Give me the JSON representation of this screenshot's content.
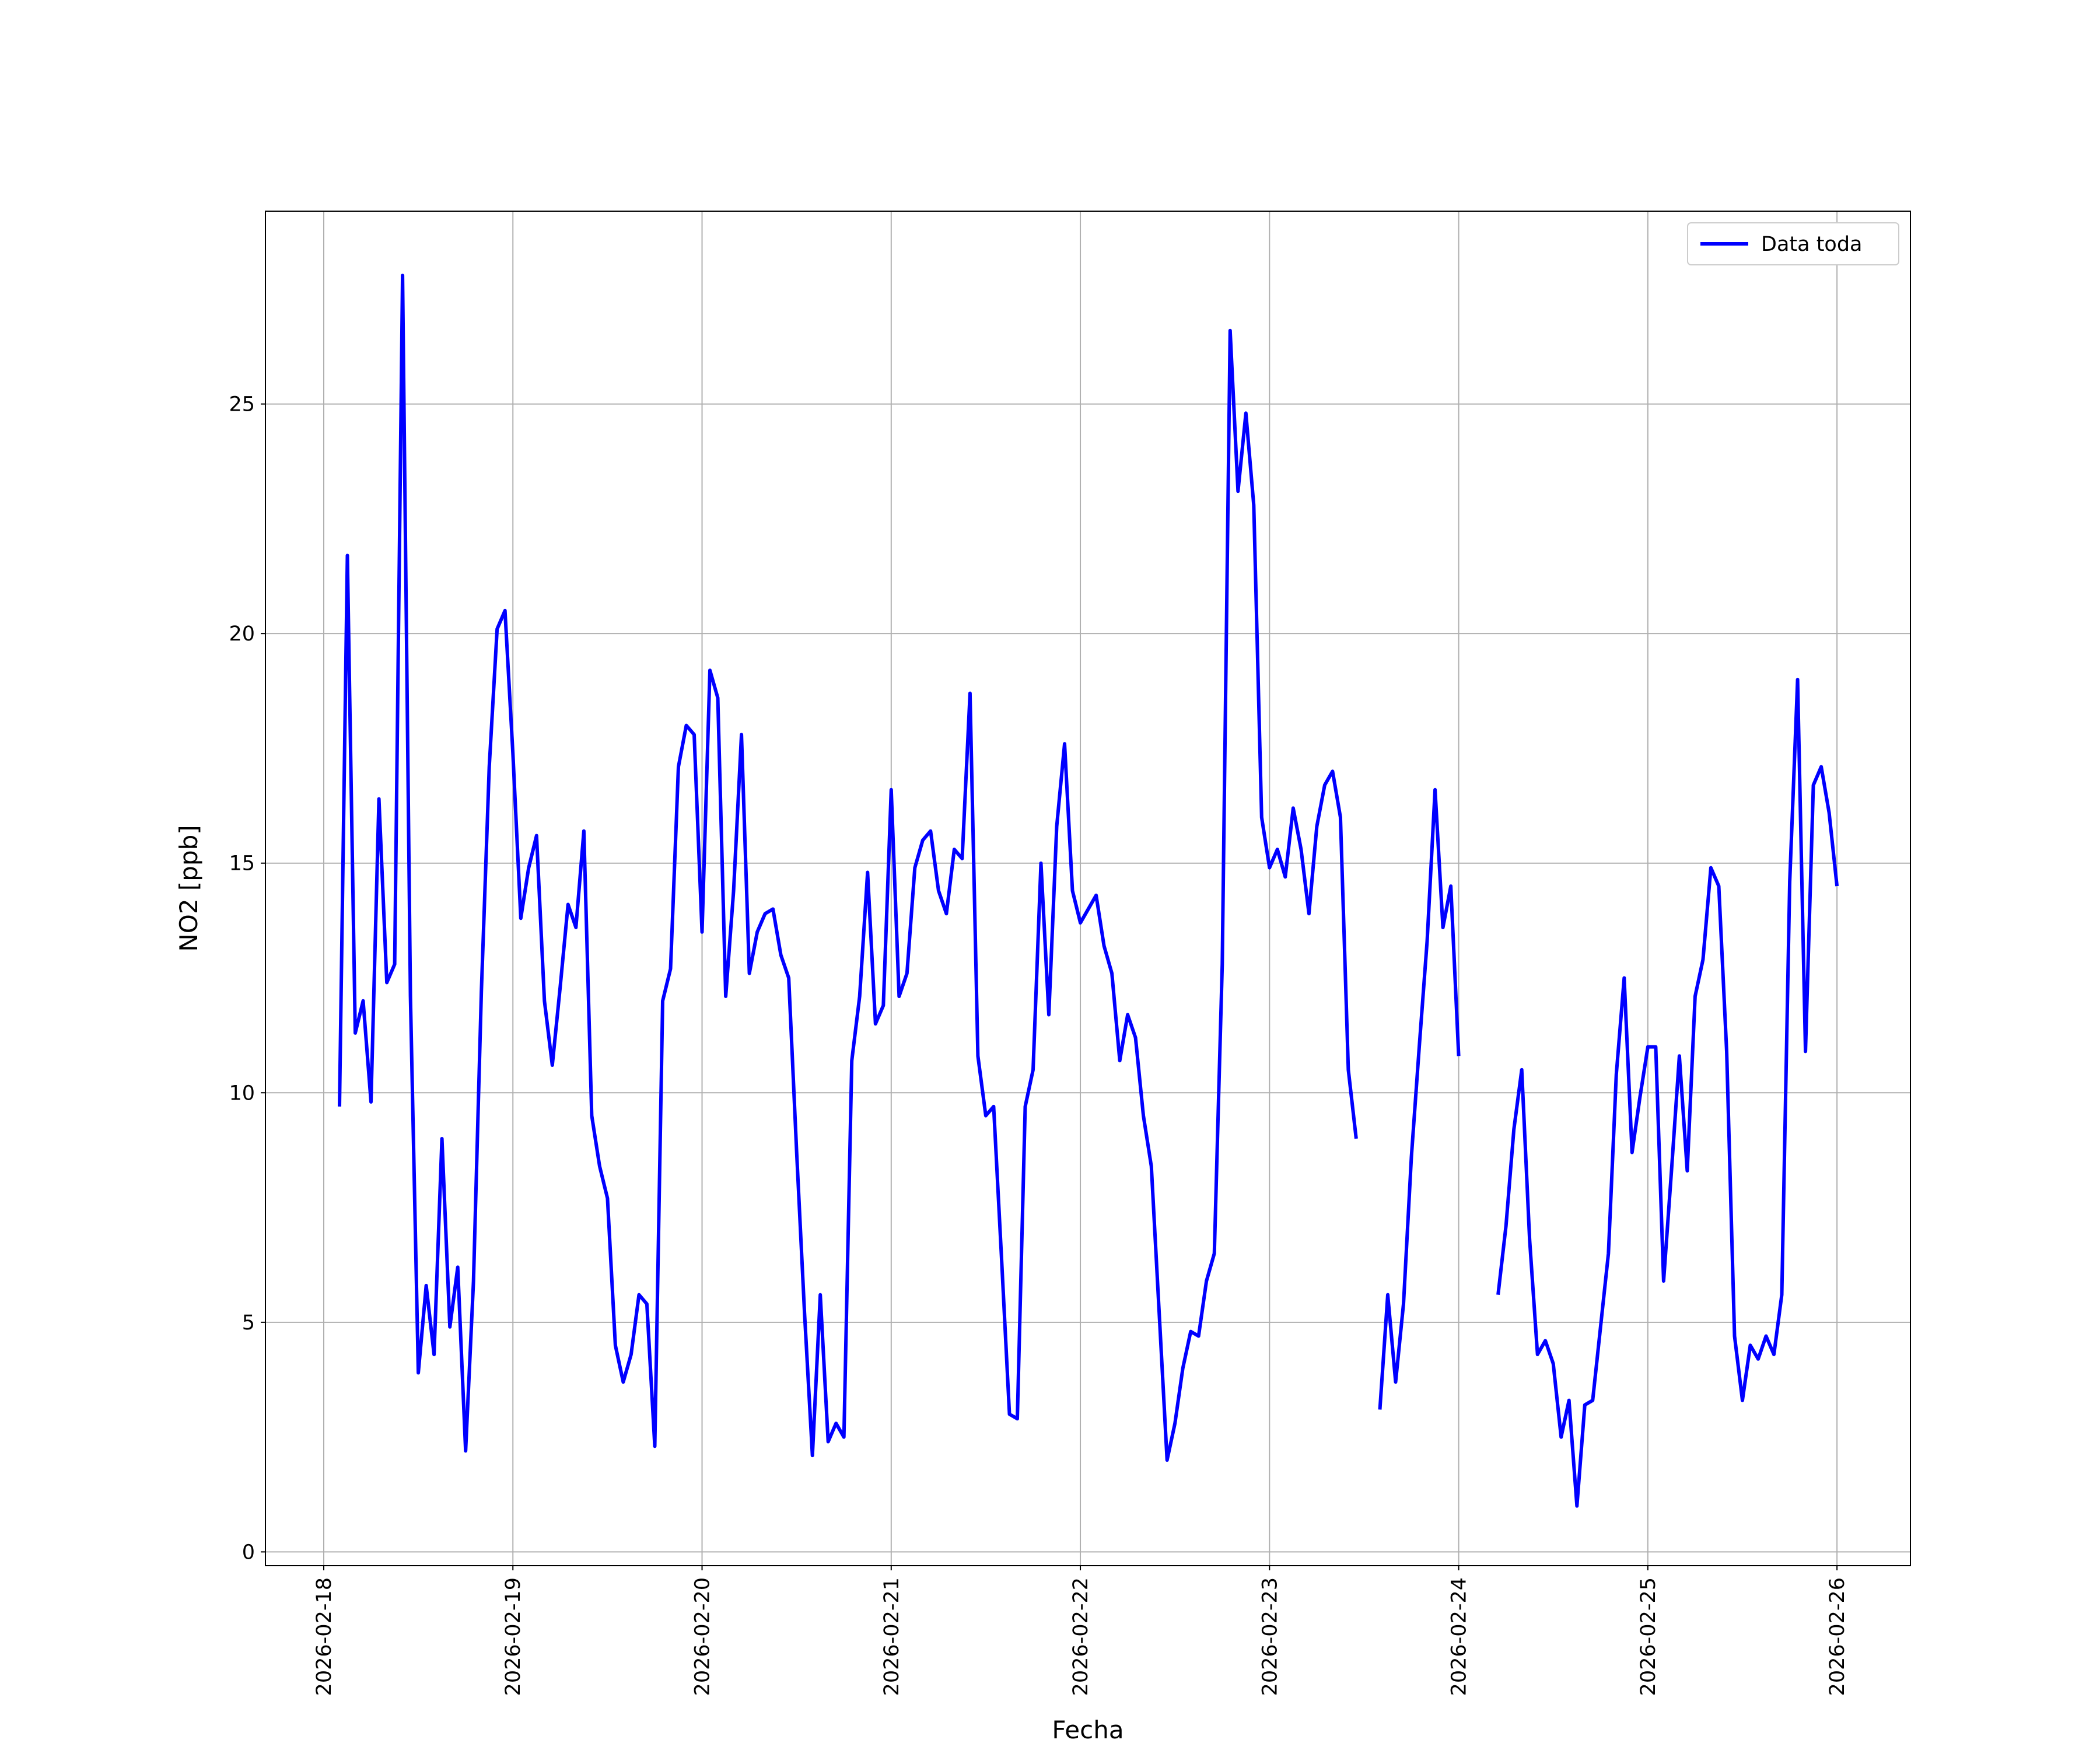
{
  "chart_data": {
    "type": "line",
    "xlabel": "Fecha",
    "ylabel": "NO2 [ppb]",
    "x": [
      "2026-02-18T02:00",
      "2026-02-18T03:00",
      "2026-02-18T04:00",
      "2026-02-18T05:00",
      "2026-02-18T06:00",
      "2026-02-18T07:00",
      "2026-02-18T08:00",
      "2026-02-18T09:00",
      "2026-02-18T10:00",
      "2026-02-18T11:00",
      "2026-02-18T12:00",
      "2026-02-18T13:00",
      "2026-02-18T14:00",
      "2026-02-18T15:00",
      "2026-02-18T16:00",
      "2026-02-18T17:00",
      "2026-02-18T18:00",
      "2026-02-18T19:00",
      "2026-02-18T20:00",
      "2026-02-18T21:00",
      "2026-02-18T22:00",
      "2026-02-18T23:00",
      "2026-02-19T00:00",
      "2026-02-19T01:00",
      "2026-02-19T02:00",
      "2026-02-19T03:00",
      "2026-02-19T04:00",
      "2026-02-19T05:00",
      "2026-02-19T06:00",
      "2026-02-19T07:00",
      "2026-02-19T08:00",
      "2026-02-19T09:00",
      "2026-02-19T10:00",
      "2026-02-19T11:00",
      "2026-02-19T12:00",
      "2026-02-19T13:00",
      "2026-02-19T14:00",
      "2026-02-19T15:00",
      "2026-02-19T16:00",
      "2026-02-19T17:00",
      "2026-02-19T18:00",
      "2026-02-19T19:00",
      "2026-02-19T20:00",
      "2026-02-19T21:00",
      "2026-02-19T22:00",
      "2026-02-19T23:00",
      "2026-02-20T00:00",
      "2026-02-20T01:00",
      "2026-02-20T02:00",
      "2026-02-20T03:00",
      "2026-02-20T04:00",
      "2026-02-20T05:00",
      "2026-02-20T06:00",
      "2026-02-20T07:00",
      "2026-02-20T08:00",
      "2026-02-20T09:00",
      "2026-02-20T10:00",
      "2026-02-20T11:00",
      "2026-02-20T12:00",
      "2026-02-20T13:00",
      "2026-02-20T14:00",
      "2026-02-20T15:00",
      "2026-02-20T16:00",
      "2026-02-20T17:00",
      "2026-02-20T18:00",
      "2026-02-20T19:00",
      "2026-02-20T20:00",
      "2026-02-20T21:00",
      "2026-02-20T22:00",
      "2026-02-20T23:00",
      "2026-02-21T00:00",
      "2026-02-21T01:00",
      "2026-02-21T02:00",
      "2026-02-21T03:00",
      "2026-02-21T04:00",
      "2026-02-21T05:00",
      "2026-02-21T06:00",
      "2026-02-21T07:00",
      "2026-02-21T08:00",
      "2026-02-21T09:00",
      "2026-02-21T10:00",
      "2026-02-21T11:00",
      "2026-02-21T12:00",
      "2026-02-21T13:00",
      "2026-02-21T14:00",
      "2026-02-21T15:00",
      "2026-02-21T16:00",
      "2026-02-21T17:00",
      "2026-02-21T18:00",
      "2026-02-21T19:00",
      "2026-02-21T20:00",
      "2026-02-21T21:00",
      "2026-02-21T22:00",
      "2026-02-21T23:00",
      "2026-02-22T00:00",
      "2026-02-22T01:00",
      "2026-02-22T02:00",
      "2026-02-22T03:00",
      "2026-02-22T04:00",
      "2026-02-22T05:00",
      "2026-02-22T06:00",
      "2026-02-22T07:00",
      "2026-02-22T08:00",
      "2026-02-22T09:00",
      "2026-02-22T10:00",
      "2026-02-22T11:00",
      "2026-02-22T12:00",
      "2026-02-22T13:00",
      "2026-02-22T14:00",
      "2026-02-22T15:00",
      "2026-02-22T16:00",
      "2026-02-22T17:00",
      "2026-02-22T18:00",
      "2026-02-22T19:00",
      "2026-02-22T20:00",
      "2026-02-22T21:00",
      "2026-02-22T22:00",
      "2026-02-22T23:00",
      "2026-02-23T00:00",
      "2026-02-23T01:00",
      "2026-02-23T02:00",
      "2026-02-23T03:00",
      "2026-02-23T04:00",
      "2026-02-23T05:00",
      "2026-02-23T06:00",
      "2026-02-23T07:00",
      "2026-02-23T08:00",
      "2026-02-23T09:00",
      "2026-02-23T10:00",
      "2026-02-23T11:00",
      "2026-02-23T12:00",
      "2026-02-23T13:00",
      "2026-02-23T14:00",
      "2026-02-23T15:00",
      "2026-02-23T16:00",
      "2026-02-23T17:00",
      "2026-02-23T18:00",
      "2026-02-23T19:00",
      "2026-02-23T20:00",
      "2026-02-23T21:00",
      "2026-02-23T22:00",
      "2026-02-23T23:00",
      "2026-02-24T00:00",
      "2026-02-24T01:00",
      "2026-02-24T02:00",
      "2026-02-24T03:00",
      "2026-02-24T04:00",
      "2026-02-24T05:00",
      "2026-02-24T06:00",
      "2026-02-24T07:00",
      "2026-02-24T08:00",
      "2026-02-24T09:00",
      "2026-02-24T10:00",
      "2026-02-24T11:00",
      "2026-02-24T12:00",
      "2026-02-24T13:00",
      "2026-02-24T14:00",
      "2026-02-24T15:00",
      "2026-02-24T16:00",
      "2026-02-24T17:00",
      "2026-02-24T18:00",
      "2026-02-24T19:00",
      "2026-02-24T20:00",
      "2026-02-24T21:00",
      "2026-02-24T22:00",
      "2026-02-24T23:00",
      "2026-02-25T00:00",
      "2026-02-25T01:00",
      "2026-02-25T02:00",
      "2026-02-25T03:00",
      "2026-02-25T04:00",
      "2026-02-25T05:00",
      "2026-02-25T06:00",
      "2026-02-25T07:00",
      "2026-02-25T08:00",
      "2026-02-25T09:00",
      "2026-02-25T10:00",
      "2026-02-25T11:00",
      "2026-02-25T12:00",
      "2026-02-25T13:00",
      "2026-02-25T14:00",
      "2026-02-25T15:00",
      "2026-02-25T16:00",
      "2026-02-25T17:00",
      "2026-02-25T18:00",
      "2026-02-25T19:00",
      "2026-02-25T20:00",
      "2026-02-25T21:00",
      "2026-02-25T22:00",
      "2026-02-25T23:00",
      "2026-02-26T00:00"
    ],
    "series": [
      {
        "name": "Data toda",
        "color": "#0000ff",
        "values": [
          9.7,
          21.7,
          11.3,
          12.0,
          9.8,
          16.4,
          12.4,
          12.8,
          27.8,
          12.1,
          3.9,
          5.8,
          4.3,
          9.0,
          4.9,
          6.2,
          2.2,
          5.9,
          12.2,
          17.1,
          20.1,
          20.5,
          17.4,
          13.8,
          14.9,
          15.6,
          12.0,
          10.6,
          12.3,
          14.1,
          13.6,
          15.7,
          9.5,
          8.4,
          7.7,
          4.5,
          3.7,
          4.3,
          5.6,
          5.4,
          2.3,
          12.0,
          12.7,
          17.1,
          18.0,
          17.8,
          13.5,
          19.2,
          18.6,
          12.1,
          14.4,
          17.8,
          12.6,
          13.5,
          13.9,
          14.0,
          13.0,
          12.5,
          8.7,
          5.2,
          2.1,
          5.6,
          2.4,
          2.8,
          2.5,
          10.7,
          12.1,
          14.8,
          11.5,
          11.9,
          16.6,
          12.1,
          12.6,
          14.9,
          15.5,
          15.7,
          14.4,
          13.9,
          15.3,
          15.1,
          18.7,
          10.8,
          9.5,
          9.7,
          6.4,
          3.0,
          2.9,
          9.7,
          10.5,
          15.0,
          11.7,
          15.8,
          17.6,
          14.4,
          13.7,
          14.0,
          14.3,
          13.2,
          12.6,
          10.7,
          11.7,
          11.2,
          9.5,
          8.4,
          5.2,
          2.0,
          2.8,
          4.0,
          4.8,
          4.7,
          5.9,
          6.5,
          12.8,
          26.6,
          23.1,
          24.8,
          22.8,
          16.0,
          14.9,
          15.3,
          14.7,
          16.2,
          15.3,
          13.9,
          15.8,
          16.7,
          17.0,
          16.0,
          10.5,
          9.0,
          null,
          null,
          3.1,
          5.6,
          3.7,
          5.4,
          8.6,
          11.0,
          13.3,
          16.6,
          13.6,
          14.5,
          10.8,
          null,
          null,
          null,
          null,
          5.6,
          7.1,
          9.2,
          10.5,
          6.8,
          4.3,
          4.6,
          4.1,
          2.5,
          3.3,
          1.0,
          3.2,
          3.3,
          4.9,
          6.5,
          10.4,
          12.5,
          8.7,
          9.9,
          11.0,
          11.0,
          5.9,
          8.3,
          10.8,
          8.3,
          12.1,
          12.9,
          14.9,
          14.5,
          10.9,
          4.7,
          3.3,
          4.5,
          4.2,
          4.7,
          4.3,
          5.6,
          14.6,
          19.0,
          10.9,
          16.7,
          17.1,
          16.1,
          14.5
        ]
      }
    ],
    "xlim": [
      "2026-02-17T16:36",
      "2026-02-26T09:19"
    ],
    "xticks": [
      "2026-02-18",
      "2026-02-19",
      "2026-02-20",
      "2026-02-21",
      "2026-02-22",
      "2026-02-23",
      "2026-02-24",
      "2026-02-25",
      "2026-02-26"
    ],
    "ylim": [
      -0.3,
      29.2
    ],
    "yticks": [
      0,
      5,
      10,
      15,
      20,
      25
    ],
    "grid": true,
    "legend": "upper right"
  }
}
